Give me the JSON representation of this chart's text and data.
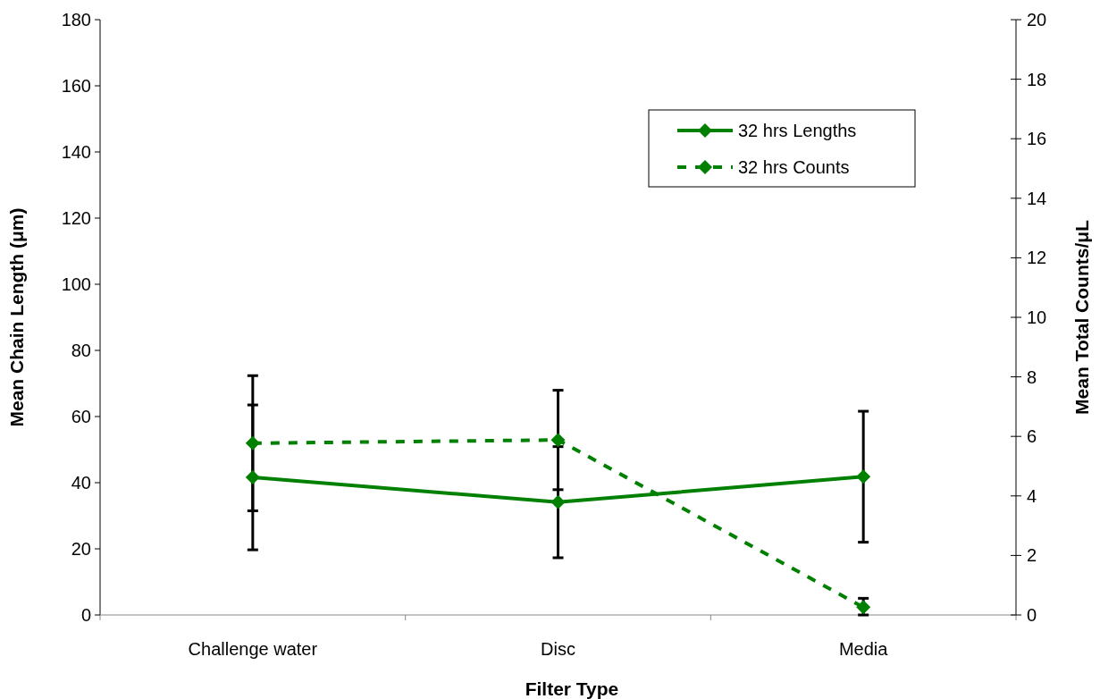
{
  "chart_data": {
    "type": "line",
    "xlabel": "Filter Type",
    "ylabel": "Mean Chain Length (μm)",
    "y2label": "Mean Total Counts/μL",
    "categories": [
      "Challenge water",
      "Disc",
      "Media"
    ],
    "series": [
      {
        "name": "32 hrs Lengths",
        "color": "#008000",
        "values": [
          41.6,
          34.1,
          41.8
        ],
        "errors": [
          21.9,
          16.8,
          19.8
        ],
        "line_style": "solid"
      },
      {
        "name": "32 hrs Counts",
        "color": "#008000",
        "values": [
          5.77,
          5.88,
          0.26
        ],
        "errors": [
          2.27,
          1.67,
          [
            0,
            0.56
          ]
        ],
        "line_style": "dashed",
        "axis": "y2"
      }
    ],
    "ylim": [
      0,
      180
    ],
    "yticks": [
      0,
      20,
      40,
      60,
      80,
      100,
      120,
      140,
      160,
      180
    ],
    "y2lim": [
      0,
      20
    ],
    "y2ticks": [
      0,
      2,
      4,
      6,
      8,
      10,
      12,
      14,
      16,
      18,
      20
    ],
    "marker": "diamond",
    "legend": "top right",
    "grid": false
  }
}
